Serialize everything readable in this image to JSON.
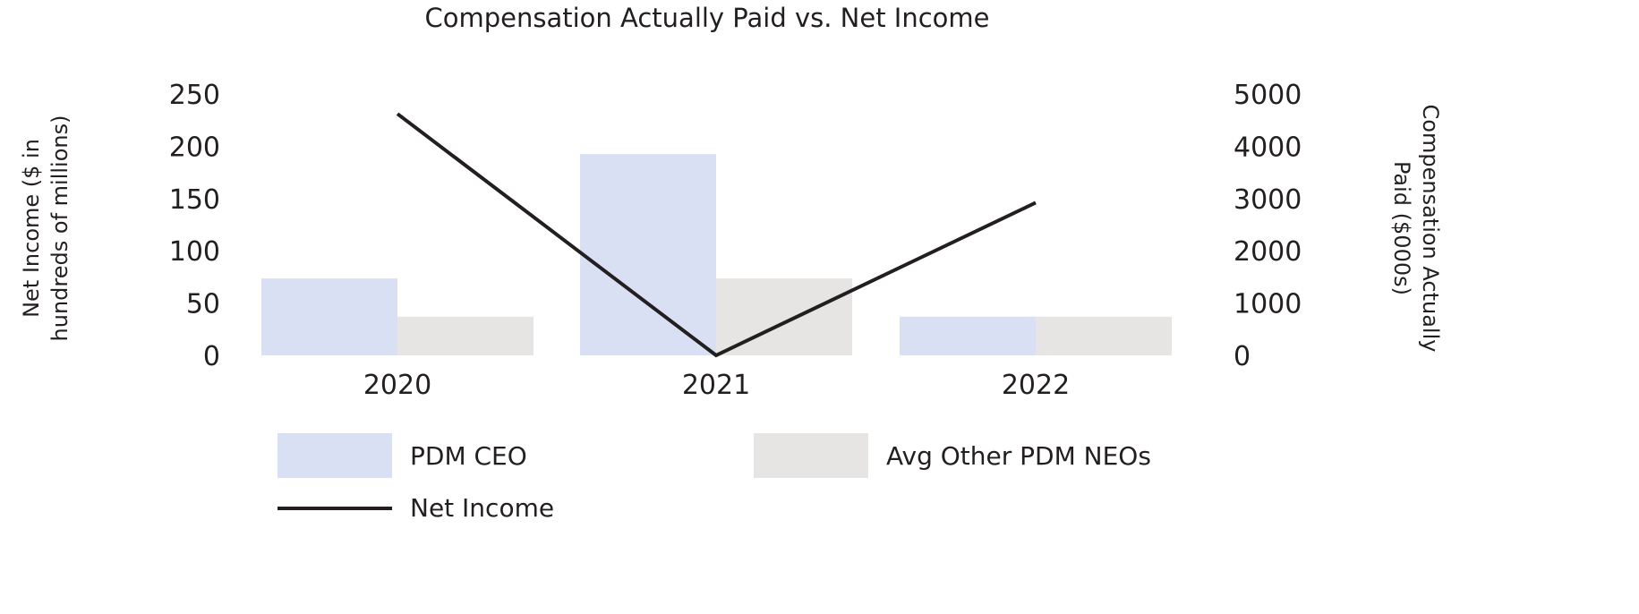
{
  "chart_data": {
    "type": "bar+line",
    "title": "Compensation Actually Paid vs. Net Income",
    "categories": [
      "2020",
      "2021",
      "2022"
    ],
    "y_left": {
      "label": "Net Income ($ in hundreds of millions)",
      "label_lines": [
        "Net Income ($ in",
        "hundreds of millions)"
      ],
      "range": [
        0,
        250
      ],
      "ticks": [
        "0",
        "50",
        "100",
        "150",
        "200",
        "250"
      ]
    },
    "y_right": {
      "label": "Compensation Actually Paid ($000s)",
      "label_lines": [
        "Compensation Actually",
        "Paid ($000s)"
      ],
      "range": [
        0,
        5000
      ],
      "ticks": [
        "0",
        "1000",
        "2000",
        "3000",
        "4000",
        "5000"
      ]
    },
    "series": [
      {
        "name": "PDM CEO",
        "type": "bar",
        "axis": "right",
        "color": "#d9e0f3",
        "values": [
          1470,
          3850,
          740
        ]
      },
      {
        "name": "Avg Other PDM NEOs",
        "type": "bar",
        "axis": "right",
        "color": "#e6e5e3",
        "values": [
          740,
          1470,
          740
        ]
      },
      {
        "name": "Net Income",
        "type": "line",
        "axis": "left",
        "color": "#231f20",
        "values": [
          231,
          0,
          146
        ]
      }
    ],
    "grid": false,
    "legend": "bottom"
  }
}
